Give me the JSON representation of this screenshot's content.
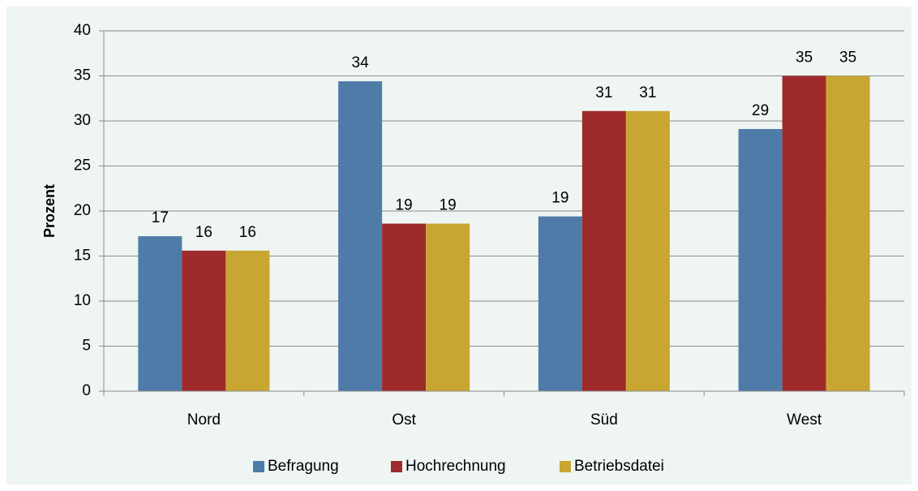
{
  "chart_data": {
    "type": "bar",
    "y_label": "Prozent",
    "categories": [
      "Nord",
      "Ost",
      "Süd",
      "West"
    ],
    "series": [
      {
        "name": "Befragung",
        "color": "#4f7ba8",
        "values": [
          17.2,
          34.4,
          19.4,
          29.1
        ],
        "value_labels": [
          "17",
          "34",
          "19",
          "29"
        ]
      },
      {
        "name": "Hochrechnung",
        "color": "#9e2a2b",
        "values": [
          15.6,
          18.6,
          31.1,
          35.0
        ],
        "value_labels": [
          "16",
          "19",
          "31",
          "35"
        ]
      },
      {
        "name": "Betriebsdatei",
        "color": "#c9a632",
        "values": [
          15.6,
          18.6,
          31.1,
          35.0
        ],
        "value_labels": [
          "16",
          "19",
          "31",
          "35"
        ]
      }
    ],
    "ylim": [
      0,
      40
    ],
    "yticks": [
      0,
      5,
      10,
      15,
      20,
      25,
      30,
      35,
      40
    ],
    "grid": true,
    "legend": "bottom"
  }
}
